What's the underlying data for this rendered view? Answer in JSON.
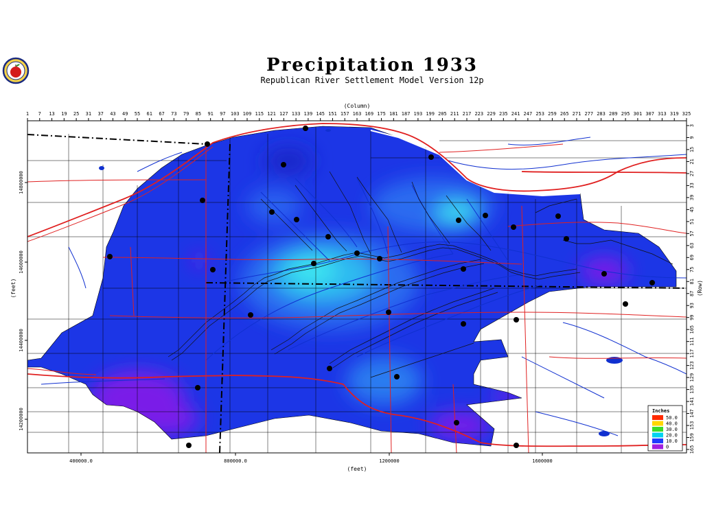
{
  "title": "Precipitation  1933",
  "subtitle": "Republican River Settlement Model Version 12p",
  "column_axis_label": "(Column)",
  "row_axis_label": "(Row)",
  "x_axis_label": "(feet)",
  "y_axis_label": "(feet)",
  "column_ticks": [
    "1",
    "7",
    "13",
    "19",
    "25",
    "31",
    "37",
    "43",
    "49",
    "55",
    "61",
    "67",
    "73",
    "79",
    "85",
    "91",
    "97",
    "103",
    "109",
    "115",
    "121",
    "127",
    "133",
    "139",
    "145",
    "151",
    "157",
    "163",
    "169",
    "175",
    "181",
    "187",
    "193",
    "199",
    "205",
    "211",
    "217",
    "223",
    "229",
    "235",
    "241",
    "247",
    "253",
    "259",
    "265",
    "271",
    "277",
    "283",
    "289",
    "295",
    "301",
    "307",
    "313",
    "319",
    "325"
  ],
  "row_ticks": [
    "3",
    "9",
    "15",
    "21",
    "27",
    "33",
    "39",
    "45",
    "51",
    "57",
    "63",
    "69",
    "75",
    "81",
    "87",
    "93",
    "99",
    "105",
    "111",
    "117",
    "123",
    "129",
    "135",
    "141",
    "147",
    "153",
    "159",
    "165"
  ],
  "x_ticks": [
    "400000.0",
    "800000.0",
    "1200000",
    "1600000"
  ],
  "y_ticks": [
    "14800000",
    "14600000",
    "14400000",
    "14200000"
  ],
  "legend": {
    "title": "Inches",
    "entries": [
      {
        "label": "50.0",
        "color": "#ff2a00"
      },
      {
        "label": "40.0",
        "color": "#ffd700"
      },
      {
        "label": "30.0",
        "color": "#3cdc28"
      },
      {
        "label": "20.0",
        "color": "#00d2f0"
      },
      {
        "label": "10.0",
        "color": "#1e3cff"
      },
      {
        "label": "0",
        "color": "#a020e0"
      }
    ]
  },
  "colors": {
    "precip_low": "#7a1fe8",
    "precip_mid": "#1f3cf0",
    "precip_high": "#3ce8f0",
    "road": "#e02020",
    "stream": "#1030d0",
    "county_line": "#000000",
    "station": "#000000"
  },
  "icons": {
    "logo": "apple-seal-icon",
    "station_marker": "weather-station-dot-icon"
  }
}
